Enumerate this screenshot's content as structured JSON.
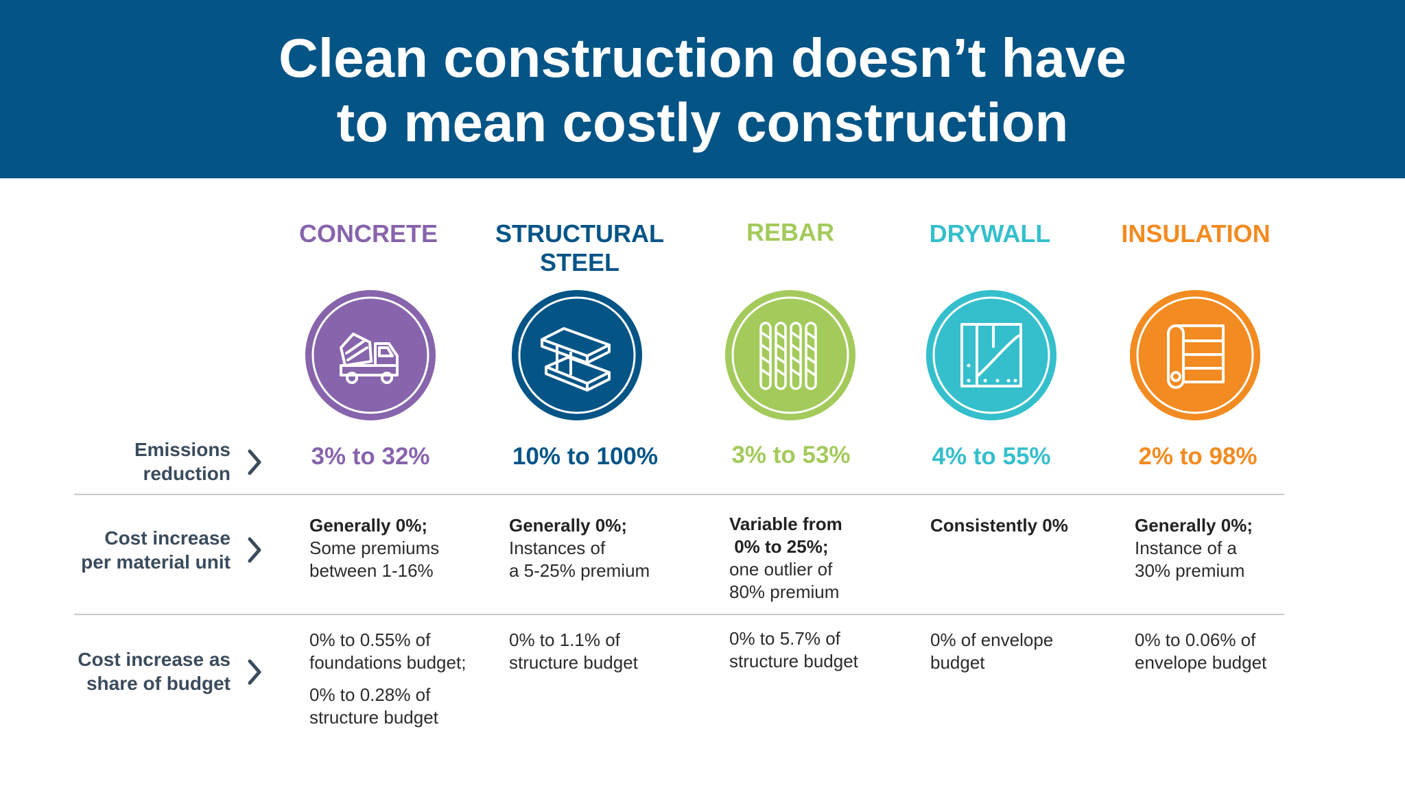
{
  "title": {
    "line1": "Clean construction doesn’t have",
    "line2": "to mean costly construction"
  },
  "materials": [
    {
      "name_line1": "CONCRETE",
      "name_line2": "",
      "color": "#8764ab",
      "icon": "concrete-mixer-truck-icon",
      "emissions": "3% to 32%",
      "cost_unit_lead": [
        "Generally 0%;"
      ],
      "cost_unit_text": [
        "Some premiums",
        "between 1-16%"
      ],
      "budget_text": [
        "0% to 0.55% of",
        "foundations budget;"
      ],
      "budget_text2": [
        "0% to 0.28% of",
        "structure budget"
      ]
    },
    {
      "name_line1": "STRUCTURAL",
      "name_line2": "STEEL",
      "color": "#045486",
      "icon": "steel-beam-icon",
      "emissions": "10% to 100%",
      "cost_unit_lead": [
        "Generally 0%;"
      ],
      "cost_unit_text": [
        "Instances of",
        "a 5-25% premium"
      ],
      "budget_text": [
        "0% to 1.1% of",
        "structure budget"
      ]
    },
    {
      "name_line1": "REBAR",
      "name_line2": "",
      "color": "#a3ca5b",
      "icon": "rebar-icon",
      "emissions": "3% to 53%",
      "cost_unit_lead": [
        "Variable from",
        " 0% to 25%;"
      ],
      "cost_unit_text": [
        "one outlier of",
        "80% premium"
      ],
      "budget_text": [
        "0% to 5.7% of",
        "structure budget"
      ]
    },
    {
      "name_line1": "DRYWALL",
      "name_line2": "",
      "color": "#35bfcc",
      "icon": "drywall-panel-icon",
      "emissions": "4% to 55%",
      "cost_unit_lead": [
        "Consistently 0%"
      ],
      "cost_unit_text": [],
      "budget_text": [
        "0% of envelope",
        "budget"
      ]
    },
    {
      "name_line1": "INSULATION",
      "name_line2": "",
      "color": "#f28b21",
      "icon": "insulation-roll-icon",
      "emissions": "2% to 98%",
      "cost_unit_lead": [
        "Generally 0%;"
      ],
      "cost_unit_text": [
        "Instance of a",
        "30% premium"
      ],
      "budget_text": [
        "0% to 0.06% of",
        "envelope budget"
      ]
    }
  ],
  "row_labels": {
    "emissions": [
      "Emissions",
      "reduction"
    ],
    "cost_unit": [
      "Cost increase",
      "per material unit"
    ],
    "budget": [
      "Cost increase as",
      "share of budget"
    ]
  },
  "colors": {
    "banner": "#045486",
    "row_label": "#3a4b5c",
    "divider": "#c9c9c9"
  }
}
